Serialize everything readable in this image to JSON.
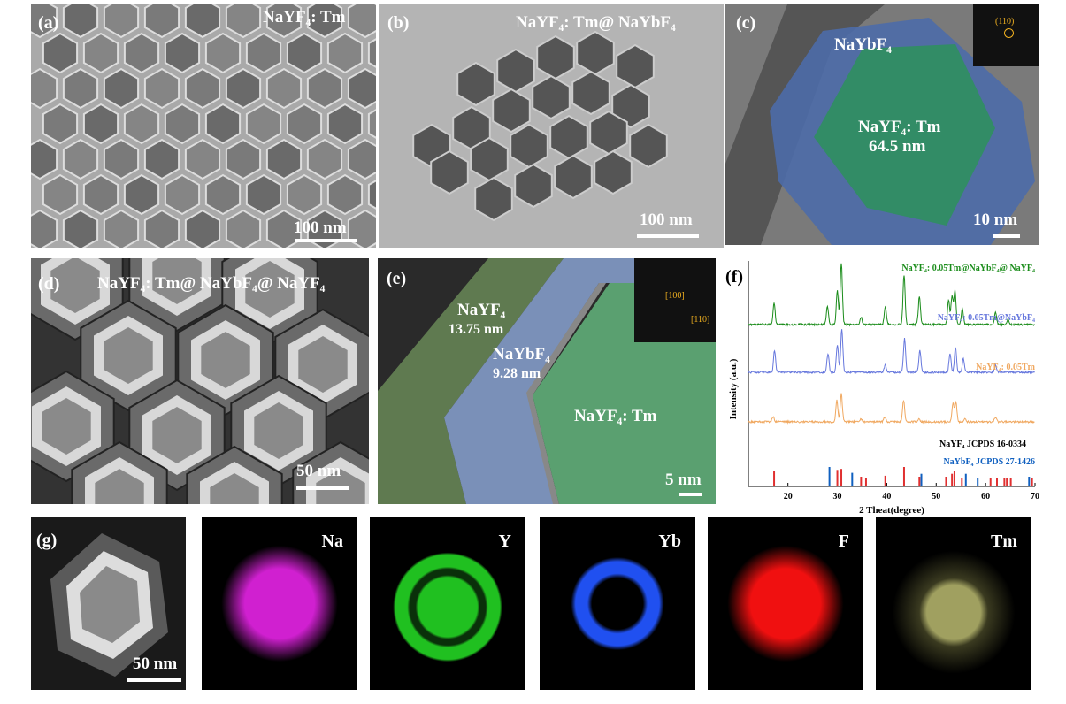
{
  "panels": {
    "a": {
      "tag": "(a)",
      "title": "NaYF₄: Tm",
      "scale": "100 nm"
    },
    "b": {
      "tag": "(b)",
      "title": "NaYF₄: Tm@ NaYbF₄",
      "scale": "100 nm"
    },
    "c": {
      "tag": "(c)",
      "shell": "NaYbF₄",
      "core": "NaYF₄: Tm",
      "size": "64.5 nm",
      "fft": "(110)",
      "scale": "10 nm"
    },
    "d": {
      "tag": "(d)",
      "title": "NaYF₄: Tm@ NaYbF₄@ NaYF₄",
      "scale": "50 nm"
    },
    "e": {
      "tag": "(e)",
      "outer": "NaYF₄",
      "outer_t": "13.75 nm",
      "mid": "NaYbF₄",
      "mid_t": "9.28 nm",
      "core": "NaYF₄: Tm",
      "fft1": "[100]",
      "fft2": "[110]",
      "scale": "5 nm"
    },
    "f": {
      "tag": "(f)"
    },
    "g": {
      "tag": "(g)",
      "scale": "50 nm",
      "maps": [
        "Na",
        "Y",
        "Yb",
        "F",
        "Tm"
      ]
    }
  },
  "colors": {
    "na": "#d020d0",
    "y": "#20c020",
    "yb": "#2050f0",
    "f": "#f01010",
    "tm": "#a0a060",
    "green": "#1a8c1a",
    "blue": "#6677dd",
    "orange": "#f0a860",
    "ref_red": "#e03030",
    "ref_blue": "#1060c0"
  },
  "chart_data": {
    "type": "line",
    "xlabel": "2 Theat(degree)",
    "ylabel": "Intensity (a.u.)",
    "xlim": [
      12,
      70
    ],
    "xticks": [
      20,
      30,
      40,
      50,
      60,
      70
    ],
    "series": [
      {
        "name": "NaYF₄: 0.05Tm@NaYbF₄@ NaYF₄",
        "color": "#1a8c1a",
        "peaks": [
          [
            17.2,
            0.35
          ],
          [
            28.0,
            0.3
          ],
          [
            30.0,
            0.55
          ],
          [
            30.8,
            1.0
          ],
          [
            34.8,
            0.12
          ],
          [
            39.7,
            0.3
          ],
          [
            43.5,
            0.8
          ],
          [
            46.6,
            0.45
          ],
          [
            52.5,
            0.4
          ],
          [
            53.2,
            0.45
          ],
          [
            53.8,
            0.55
          ],
          [
            55.3,
            0.25
          ],
          [
            62.0,
            0.2
          ],
          [
            64.5,
            0.08
          ]
        ]
      },
      {
        "name": "NaYF₄: 0.05Tm@NaYbF₄",
        "color": "#6677dd",
        "peaks": [
          [
            17.3,
            0.35
          ],
          [
            28.1,
            0.3
          ],
          [
            30.0,
            0.45
          ],
          [
            30.9,
            0.7
          ],
          [
            39.7,
            0.12
          ],
          [
            43.6,
            0.55
          ],
          [
            46.7,
            0.35
          ],
          [
            52.8,
            0.3
          ],
          [
            53.9,
            0.4
          ],
          [
            55.5,
            0.22
          ],
          [
            62.0,
            0.12
          ]
        ]
      },
      {
        "name": "NaYF₄: 0.05Tm",
        "color": "#f0a860",
        "peaks": [
          [
            17.0,
            0.08
          ],
          [
            29.9,
            0.35
          ],
          [
            30.8,
            0.45
          ],
          [
            34.8,
            0.05
          ],
          [
            39.6,
            0.08
          ],
          [
            43.4,
            0.35
          ],
          [
            46.5,
            0.05
          ],
          [
            53.4,
            0.3
          ],
          [
            54.0,
            0.3
          ],
          [
            55.8,
            0.05
          ],
          [
            62.0,
            0.08
          ]
        ]
      }
    ],
    "references": [
      {
        "name": "NaYF₄  JCPDS 16-0334",
        "color": "#e03030",
        "lines": [
          [
            17.2,
            0.8
          ],
          [
            30.0,
            0.85
          ],
          [
            30.8,
            0.9
          ],
          [
            34.8,
            0.5
          ],
          [
            35.8,
            0.45
          ],
          [
            39.7,
            0.55
          ],
          [
            43.5,
            1.0
          ],
          [
            46.6,
            0.5
          ],
          [
            52.0,
            0.5
          ],
          [
            53.2,
            0.65
          ],
          [
            53.7,
            0.8
          ],
          [
            55.2,
            0.45
          ],
          [
            61.0,
            0.45
          ],
          [
            62.3,
            0.45
          ],
          [
            63.8,
            0.45
          ],
          [
            64.3,
            0.45
          ],
          [
            65.1,
            0.45
          ],
          [
            69.4,
            0.45
          ]
        ]
      },
      {
        "name": "NaYbF₄  JCPDS 27-1426",
        "color": "#1060c0",
        "lines": [
          [
            28.4,
            1.0
          ],
          [
            33.0,
            0.7
          ],
          [
            47.0,
            0.65
          ],
          [
            56.0,
            0.65
          ],
          [
            58.4,
            0.45
          ],
          [
            68.8,
            0.5
          ]
        ]
      }
    ]
  }
}
